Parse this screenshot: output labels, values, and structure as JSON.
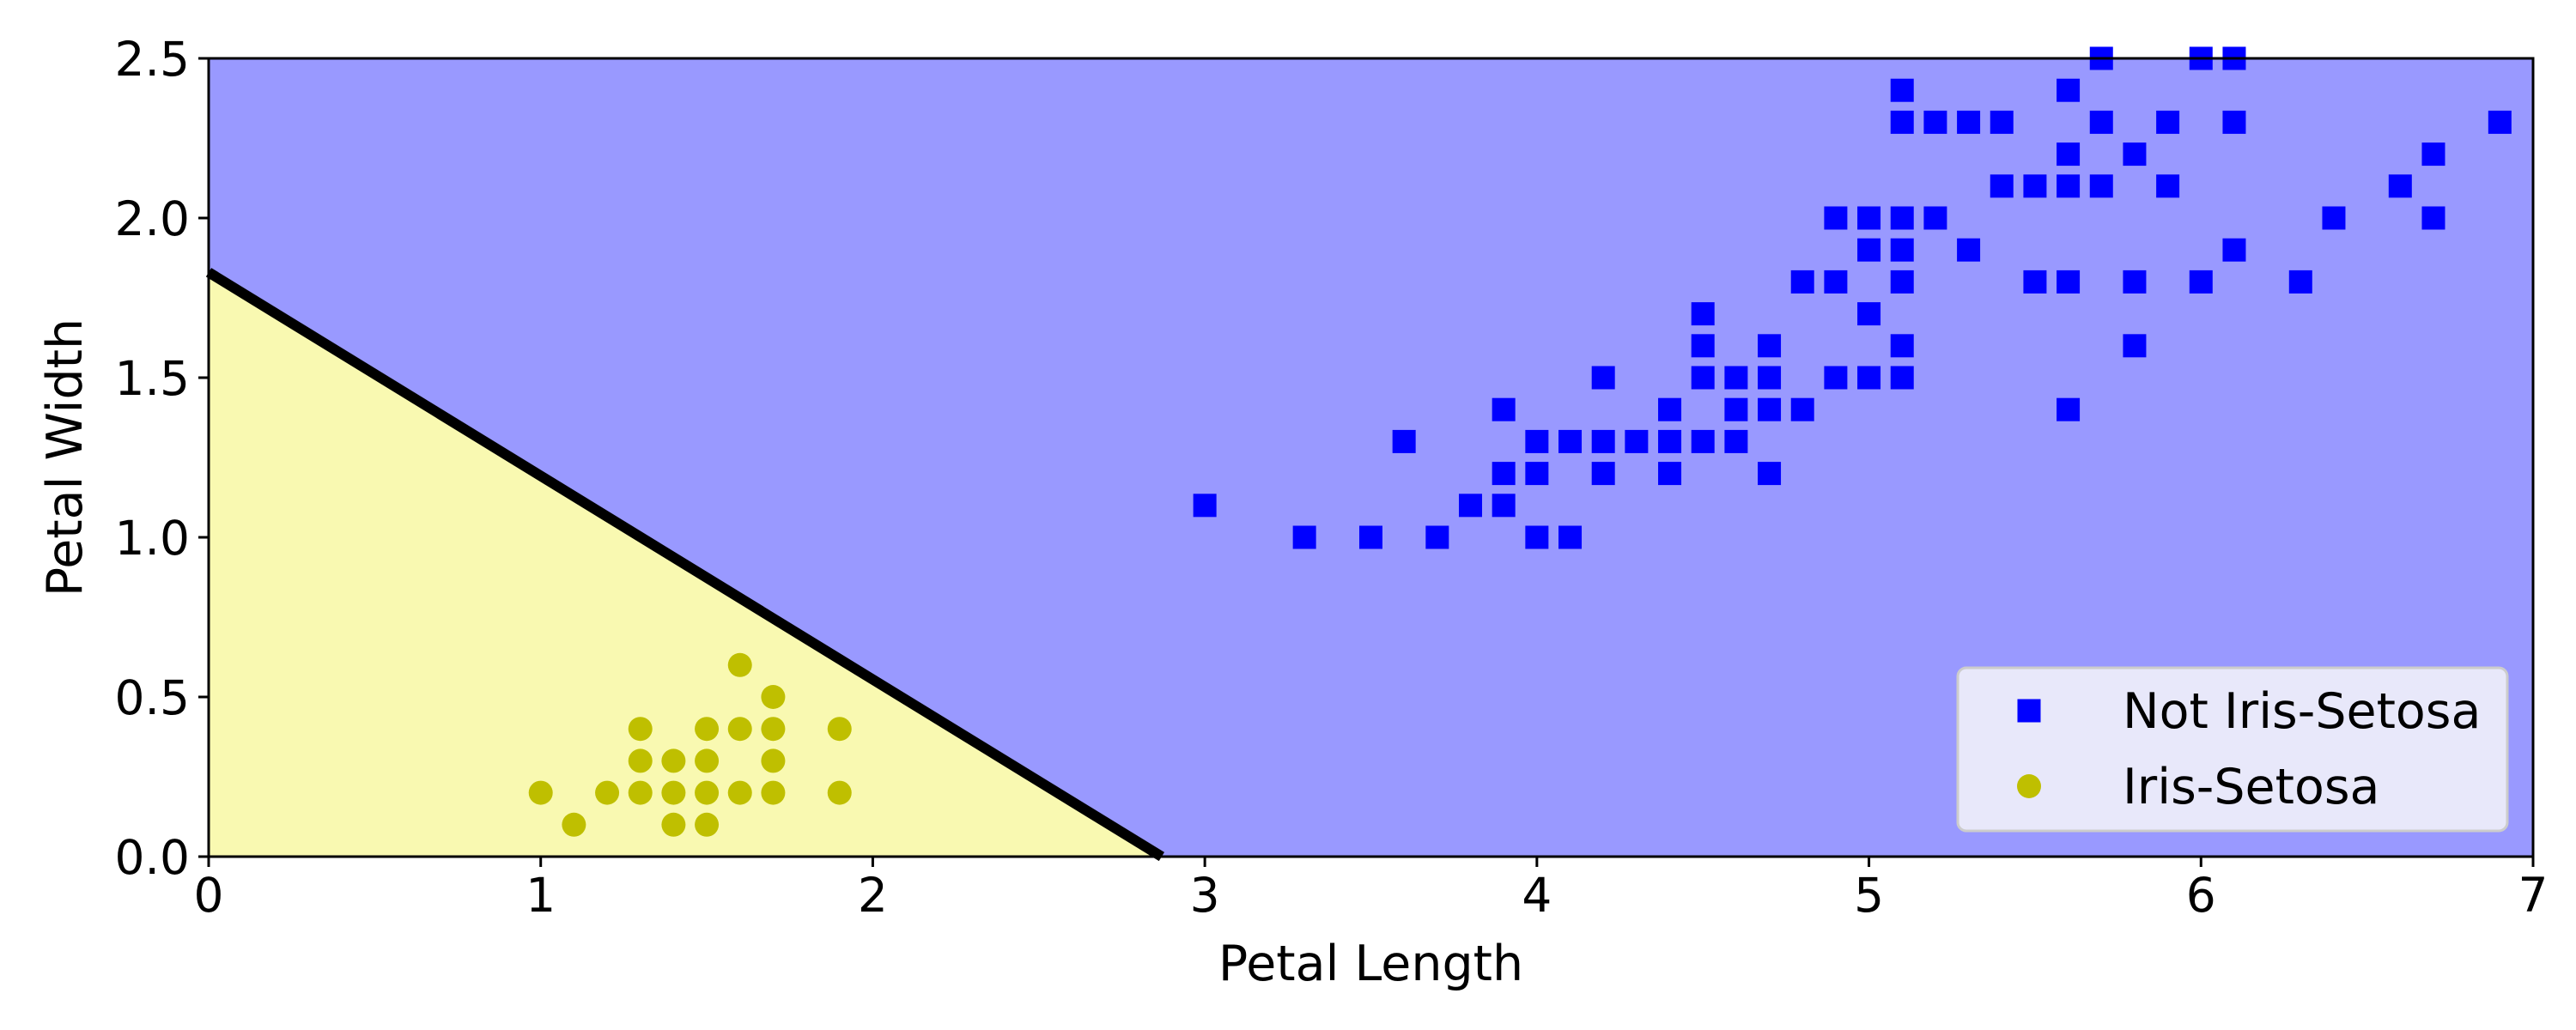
{
  "chart_data": {
    "type": "scatter",
    "xlabel": "Petal Length",
    "ylabel": "Petal Width",
    "xlim": [
      0,
      7
    ],
    "ylim": [
      0,
      2.5
    ],
    "xticks": [
      0,
      1,
      2,
      3,
      4,
      5,
      6,
      7
    ],
    "xtick_labels": [
      "0",
      "1",
      "2",
      "3",
      "4",
      "5",
      "6",
      "7"
    ],
    "yticks": [
      0,
      0.5,
      1,
      1.5,
      2,
      2.5
    ],
    "ytick_labels": [
      "0.0",
      "0.5",
      "1.0",
      "1.5",
      "2.0",
      "2.5"
    ],
    "grid": false,
    "legend_position": "lower-right",
    "decision_boundary": {
      "x": [
        0,
        2.87
      ],
      "y": [
        1.83,
        0
      ],
      "color": "#000000"
    },
    "regions": [
      {
        "label": "Iris-Setosa",
        "color": "#f9f9b1",
        "side": "below-boundary"
      },
      {
        "label": "Not Iris-Setosa",
        "color": "#9999ff",
        "side": "above-boundary"
      }
    ],
    "series": [
      {
        "name": "Not Iris-Setosa",
        "marker": "square",
        "color": "#0000ff",
        "points": [
          [
            3.0,
            1.1
          ],
          [
            3.3,
            1.0
          ],
          [
            3.5,
            1.0
          ],
          [
            3.6,
            1.3
          ],
          [
            3.7,
            1.0
          ],
          [
            3.8,
            1.1
          ],
          [
            3.9,
            1.1
          ],
          [
            3.9,
            1.2
          ],
          [
            3.9,
            1.4
          ],
          [
            4.0,
            1.0
          ],
          [
            4.0,
            1.2
          ],
          [
            4.0,
            1.3
          ],
          [
            4.1,
            1.0
          ],
          [
            4.1,
            1.3
          ],
          [
            4.2,
            1.2
          ],
          [
            4.2,
            1.3
          ],
          [
            4.2,
            1.5
          ],
          [
            4.3,
            1.3
          ],
          [
            4.4,
            1.2
          ],
          [
            4.4,
            1.3
          ],
          [
            4.4,
            1.4
          ],
          [
            4.5,
            1.3
          ],
          [
            4.5,
            1.5
          ],
          [
            4.5,
            1.6
          ],
          [
            4.5,
            1.7
          ],
          [
            4.6,
            1.3
          ],
          [
            4.6,
            1.4
          ],
          [
            4.6,
            1.5
          ],
          [
            4.7,
            1.2
          ],
          [
            4.7,
            1.4
          ],
          [
            4.7,
            1.5
          ],
          [
            4.7,
            1.6
          ],
          [
            4.8,
            1.4
          ],
          [
            4.8,
            1.8
          ],
          [
            4.9,
            1.5
          ],
          [
            4.9,
            1.8
          ],
          [
            4.9,
            2.0
          ],
          [
            5.0,
            1.5
          ],
          [
            5.0,
            1.7
          ],
          [
            5.0,
            1.9
          ],
          [
            5.0,
            2.0
          ],
          [
            5.1,
            1.5
          ],
          [
            5.1,
            1.6
          ],
          [
            5.1,
            1.8
          ],
          [
            5.1,
            1.9
          ],
          [
            5.1,
            2.0
          ],
          [
            5.1,
            2.3
          ],
          [
            5.1,
            2.4
          ],
          [
            5.2,
            2.0
          ],
          [
            5.2,
            2.3
          ],
          [
            5.3,
            1.9
          ],
          [
            5.3,
            2.3
          ],
          [
            5.4,
            2.1
          ],
          [
            5.4,
            2.3
          ],
          [
            5.5,
            1.8
          ],
          [
            5.5,
            2.1
          ],
          [
            5.6,
            1.4
          ],
          [
            5.6,
            1.8
          ],
          [
            5.6,
            2.1
          ],
          [
            5.6,
            2.2
          ],
          [
            5.6,
            2.4
          ],
          [
            5.7,
            2.1
          ],
          [
            5.7,
            2.3
          ],
          [
            5.7,
            2.5
          ],
          [
            5.8,
            1.6
          ],
          [
            5.8,
            1.8
          ],
          [
            5.8,
            2.2
          ],
          [
            5.9,
            2.1
          ],
          [
            5.9,
            2.3
          ],
          [
            6.0,
            1.8
          ],
          [
            6.0,
            2.5
          ],
          [
            6.1,
            1.9
          ],
          [
            6.1,
            2.3
          ],
          [
            6.1,
            2.5
          ],
          [
            6.3,
            1.8
          ],
          [
            6.4,
            2.0
          ],
          [
            6.6,
            2.1
          ],
          [
            6.7,
            2.0
          ],
          [
            6.7,
            2.2
          ],
          [
            6.9,
            2.3
          ]
        ]
      },
      {
        "name": "Iris-Setosa",
        "marker": "circle",
        "color": "#bfbf00",
        "points": [
          [
            1.0,
            0.2
          ],
          [
            1.1,
            0.1
          ],
          [
            1.2,
            0.2
          ],
          [
            1.3,
            0.2
          ],
          [
            1.3,
            0.3
          ],
          [
            1.3,
            0.4
          ],
          [
            1.4,
            0.1
          ],
          [
            1.4,
            0.2
          ],
          [
            1.4,
            0.3
          ],
          [
            1.5,
            0.1
          ],
          [
            1.5,
            0.2
          ],
          [
            1.5,
            0.3
          ],
          [
            1.5,
            0.4
          ],
          [
            1.6,
            0.2
          ],
          [
            1.6,
            0.4
          ],
          [
            1.6,
            0.6
          ],
          [
            1.7,
            0.2
          ],
          [
            1.7,
            0.3
          ],
          [
            1.7,
            0.4
          ],
          [
            1.7,
            0.5
          ],
          [
            1.9,
            0.2
          ],
          [
            1.9,
            0.4
          ]
        ]
      }
    ]
  }
}
